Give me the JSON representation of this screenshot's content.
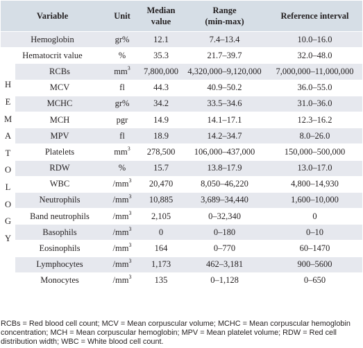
{
  "header": {
    "variable": "Variable",
    "unit": "Unit",
    "median_line1": "Median",
    "median_line2": "value",
    "range_line1": "Range",
    "range_line2": "(min-max)",
    "reference": "Reference interval"
  },
  "side_label": [
    "H",
    "E",
    "M",
    "A",
    "T",
    "O",
    "L",
    "O",
    "G",
    "Y"
  ],
  "rows": [
    {
      "variable": "Hemoglobin",
      "unit": "gr%",
      "sup": "",
      "median": "12.1",
      "range": "7.4–13.4",
      "reference": "10.0–16.0"
    },
    {
      "variable": "Hematocrit value",
      "unit": "%",
      "sup": "",
      "median": "35.3",
      "range": "21.7–39.7",
      "reference": "32.0–48.0"
    },
    {
      "variable": "RCBs",
      "unit": "mm",
      "sup": "3",
      "median": "7,800,000",
      "range": "4,320,000–9,120,000",
      "reference": "7,000,000–11,000,000"
    },
    {
      "variable": "MCV",
      "unit": "fl",
      "sup": "",
      "median": "44.3",
      "range": "40.9–50.2",
      "reference": "36.0–55.0"
    },
    {
      "variable": "MCHC",
      "unit": "gr%",
      "sup": "",
      "median": "34.2",
      "range": "33.5–34.6",
      "reference": "31.0–36.0"
    },
    {
      "variable": "MCH",
      "unit": "pgr",
      "sup": "",
      "median": "14.9",
      "range": "14.1–17.1",
      "reference": "12.3–16.2"
    },
    {
      "variable": "MPV",
      "unit": "fl",
      "sup": "",
      "median": "18.9",
      "range": "14.2–34.7",
      "reference": "8.0–26.0"
    },
    {
      "variable": "Platelets",
      "unit": "mm",
      "sup": "3",
      "median": "278,500",
      "range": "106,000–437,000",
      "reference": "150,000–500,000"
    },
    {
      "variable": "RDW",
      "unit": "%",
      "sup": "",
      "median": "15.7",
      "range": "13.8–17.9",
      "reference": "13.0–17.0"
    },
    {
      "variable": "WBC",
      "unit": "/mm",
      "sup": "3",
      "median": "20,470",
      "range": "8,050–46,220",
      "reference": "4,800–14,930"
    },
    {
      "variable": "Neutrophils",
      "unit": "/mm",
      "sup": "3",
      "median": "10,885",
      "range": "3,689–34,440",
      "reference": "1,600–10,000"
    },
    {
      "variable": "Band neutrophils",
      "unit": "/mm",
      "sup": "3",
      "median": "2,105",
      "range": "0–32,340",
      "reference": "0"
    },
    {
      "variable": "Basophils",
      "unit": "/mm",
      "sup": "3",
      "median": "0",
      "range": "0–180",
      "reference": "0–10"
    },
    {
      "variable": "Eosinophils",
      "unit": "/mm",
      "sup": "3",
      "median": "164",
      "range": "0–770",
      "reference": "60–1470"
    },
    {
      "variable": "Lymphocytes",
      "unit": "/mm",
      "sup": "3",
      "median": "1,173",
      "range": "462–3,181",
      "reference": "900–5600"
    },
    {
      "variable": "Monocytes",
      "unit": "/mm",
      "sup": "3",
      "median": "135",
      "range": "0–1,128",
      "reference": "0–650"
    }
  ],
  "caption": "RCBs = Red blood cell count; MCV = Mean corpuscular volume; MCHC = Mean corpuscular hemoglobin concentration; MCH = Mean corpuscular hemoglobin; MPV = Mean platelet volume; RDW = Red cell distribution width; WBC = White blood cell count."
}
